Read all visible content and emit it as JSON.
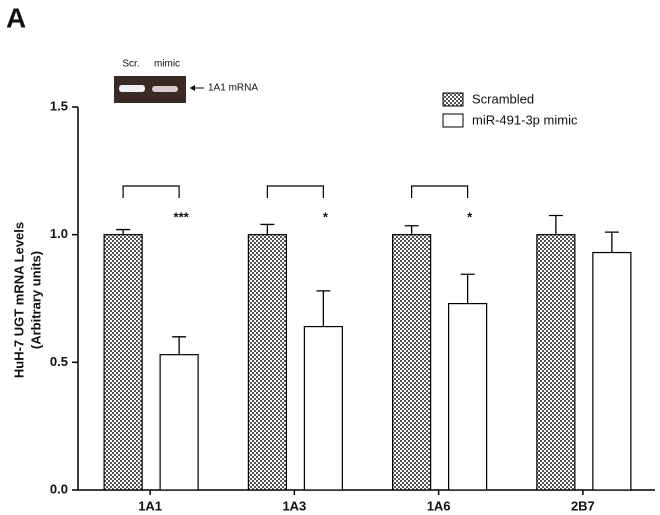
{
  "panel_label": "A",
  "inset": {
    "lanes": [
      "Scr.",
      "mimic"
    ],
    "label": "1A1 mRNA"
  },
  "chart_data": {
    "type": "bar",
    "y_label": [
      "HuH-7 UGT mRNA Levels",
      "(Arbitrary units)"
    ],
    "categories": [
      "1A1",
      "1A3",
      "1A6",
      "2B7"
    ],
    "series": [
      {
        "name": "Scrambled",
        "color": "#555555",
        "pattern": "checker",
        "values": [
          1.0,
          1.0,
          1.0,
          1.0
        ],
        "errors": [
          0.02,
          0.04,
          0.035,
          0.075
        ]
      },
      {
        "name": "miR-491-3p mimic",
        "color": "#ffffff",
        "values": [
          0.53,
          0.64,
          0.73,
          0.93
        ],
        "errors": [
          0.07,
          0.14,
          0.115,
          0.08
        ]
      }
    ],
    "annotations": [
      "***",
      "*",
      "*",
      null
    ],
    "ylim": [
      0,
      1.5
    ],
    "yticks": [
      {
        "value": 0,
        "label": "0.0"
      },
      {
        "value": 0.5,
        "label": "0.5"
      },
      {
        "value": 1.0,
        "label": "1.0"
      },
      {
        "value": 1.5,
        "label": "1.5"
      }
    ]
  }
}
